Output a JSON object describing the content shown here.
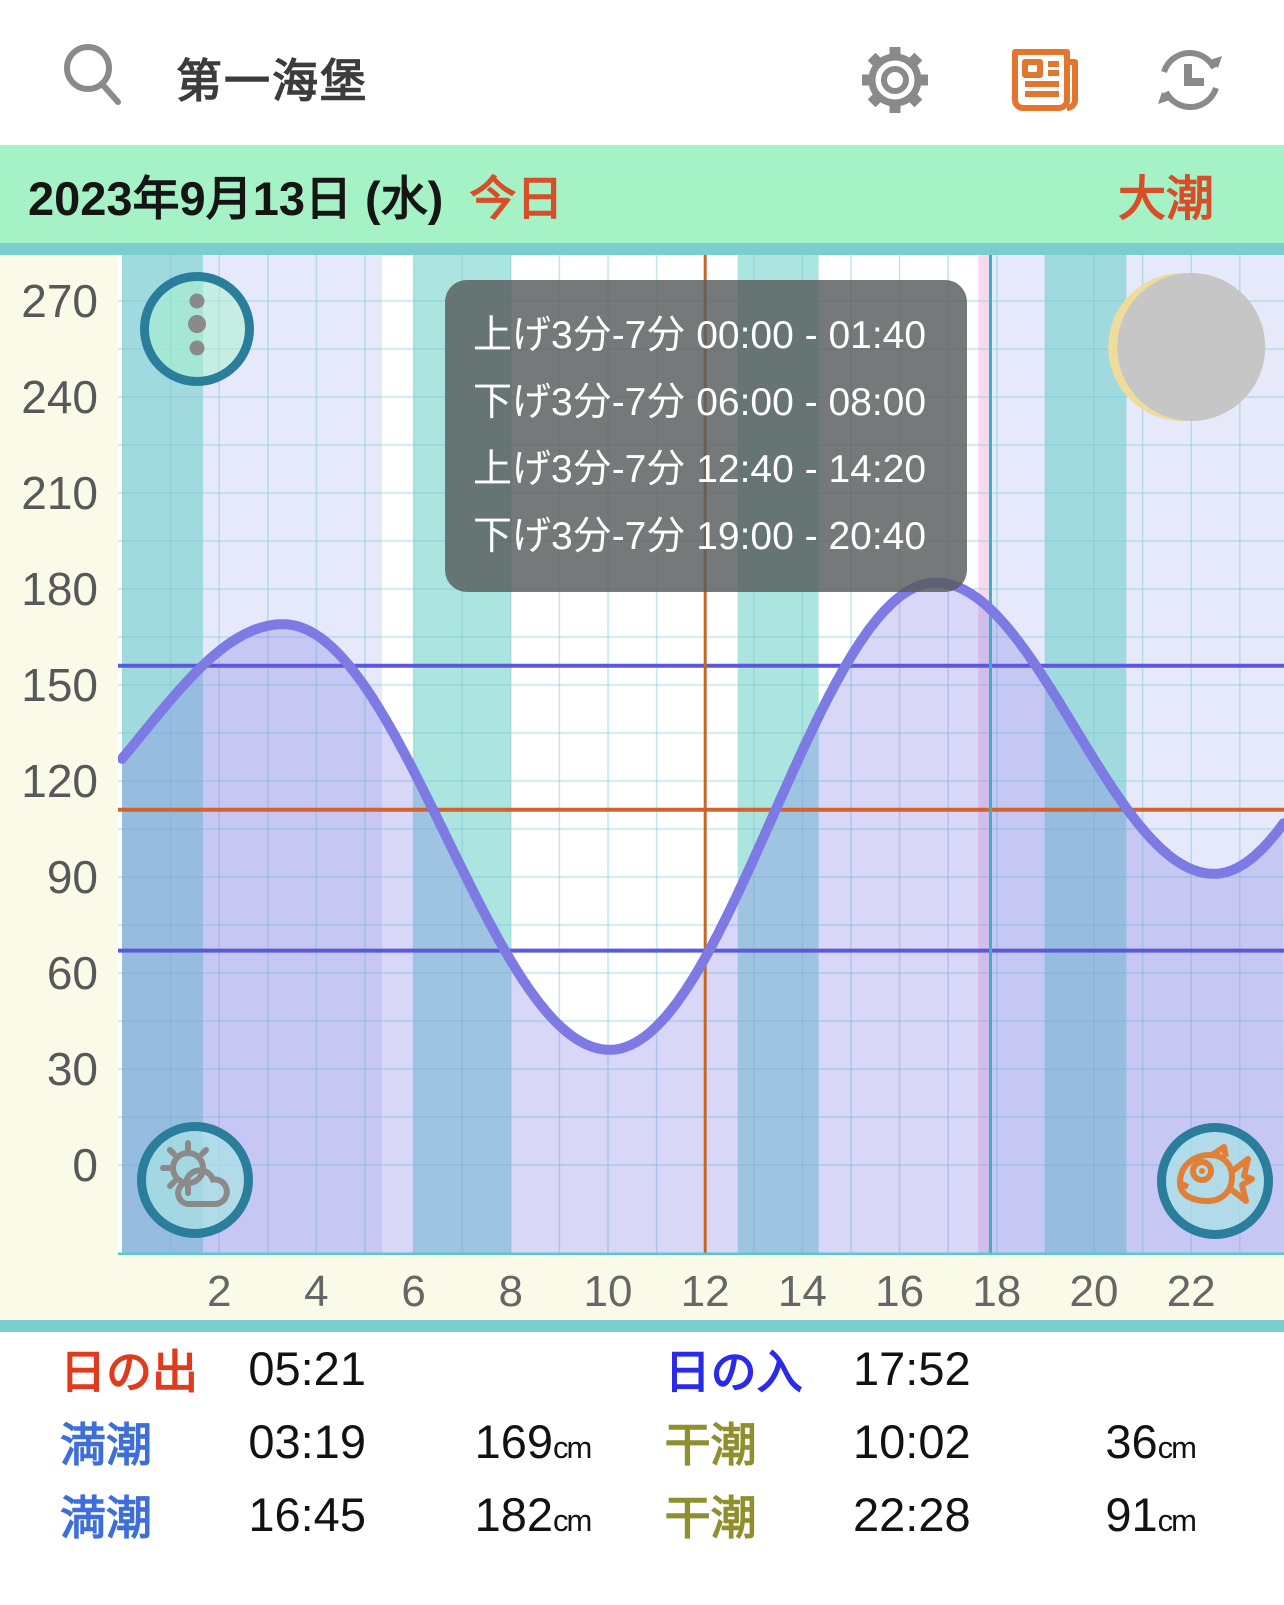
{
  "header": {
    "search_query": "第一海堡",
    "icons": [
      {
        "name": "search-icon"
      },
      {
        "name": "settings-gear-icon"
      },
      {
        "name": "news-icon"
      },
      {
        "name": "history-clock-icon"
      }
    ]
  },
  "date_bar": {
    "date": "2023年9月13日 (水)",
    "today_label": "今日",
    "tide_type": "大潮"
  },
  "tooltip": {
    "lines": [
      "上げ3分-7分 00:00 - 01:40",
      "下げ3分-7分 06:00 - 08:00",
      "上げ3分-7分 12:40 - 14:20",
      "下げ3分-7分 19:00 - 20:40"
    ]
  },
  "chart_data": {
    "type": "line",
    "title": "潮位グラフ",
    "x_ticks": [
      2,
      4,
      6,
      8,
      10,
      12,
      14,
      16,
      18,
      20,
      22
    ],
    "y_ticks": [
      0,
      30,
      60,
      90,
      120,
      150,
      180,
      210,
      240,
      270
    ],
    "xlim": [
      0,
      23.93
    ],
    "ylim": [
      -28,
      285
    ],
    "grid": "on",
    "curve_anchor_points": [
      [
        -2.5,
        100
      ],
      [
        3.317,
        169
      ],
      [
        10.033,
        36
      ],
      [
        16.75,
        182
      ],
      [
        22.467,
        91
      ],
      [
        27.8,
        185
      ]
    ],
    "tide_extremes": [
      {
        "kind": "high",
        "time": "03:19",
        "level_cm": 169
      },
      {
        "kind": "low",
        "time": "10:02",
        "level_cm": 36
      },
      {
        "kind": "high",
        "time": "16:45",
        "level_cm": 182
      },
      {
        "kind": "low",
        "time": "22:28",
        "level_cm": 91
      }
    ],
    "speed_bands_hours": [
      [
        0,
        1.667
      ],
      [
        6,
        8
      ],
      [
        12.667,
        14.333
      ],
      [
        19,
        20.667
      ]
    ],
    "night_bands_hours": [
      [
        0,
        5.35
      ],
      [
        17.87,
        23.93
      ]
    ],
    "reference_lines_y": [
      {
        "value": 156,
        "color": "#5b58dd"
      },
      {
        "value": 111,
        "color": "#d2622e"
      },
      {
        "value": 67,
        "color": "#5b58dd"
      }
    ],
    "vertical_lines": [
      {
        "hour": 12.0,
        "color": "#c4682a",
        "name": "noon-line"
      },
      {
        "hour": 17.87,
        "color": "#3faec6",
        "name": "sunset-line"
      }
    ],
    "moon": {
      "phase": "waning-crescent",
      "hour": 22.0,
      "cy": 347,
      "r": 74
    }
  },
  "colors": {
    "banner_bg": "#a5f2c7",
    "banner_strip": "#7bcecb",
    "accent_red": "#d94e2a",
    "plot_margin": "#fafae8",
    "night": "rgba(173,182,240,0.30)",
    "speed_band": "rgba(104,206,199,0.55)",
    "grid": "rgba(120,200,214,0.45)",
    "curve": "#7d7ae3",
    "curve_fill": "rgba(125,122,227,0.30)",
    "sunset_glow": "rgba(236,170,216,0.45)",
    "axis_line": "#5bc8c8",
    "moon_gray": "#c6c6c6",
    "moon_crescent": "#f0dc9a",
    "circle_border": "#2a7e9b",
    "circle_fill_green": "rgba(170,240,205,0.55)",
    "circle_fill_teal": "rgba(168,228,226,0.70)",
    "icon_gray": "#8a8a8a",
    "fish_orange": "#e08038",
    "news_orange": "#e2762f",
    "tooltip_bg": "rgba(88,92,92,0.82)"
  },
  "info_table": {
    "rows": [
      {
        "left": {
          "label": "日の出",
          "label_color": "#e03b1f",
          "time": "05:21",
          "value": "",
          "unit": ""
        },
        "right": {
          "label": "日の入",
          "label_color": "#2a2ae8",
          "time": "17:52",
          "value": "",
          "unit": ""
        }
      },
      {
        "left": {
          "label": "満潮",
          "label_color": "#3e6fd8",
          "time": "03:19",
          "value": "169",
          "unit": "cm"
        },
        "right": {
          "label": "干潮",
          "label_color": "#8f8f2e",
          "time": "10:02",
          "value": "36",
          "unit": "cm"
        }
      },
      {
        "left": {
          "label": "満潮",
          "label_color": "#3e6fd8",
          "time": "16:45",
          "value": "182",
          "unit": "cm"
        },
        "right": {
          "label": "干潮",
          "label_color": "#8f8f2e",
          "time": "22:28",
          "value": "91",
          "unit": "cm"
        }
      }
    ]
  }
}
